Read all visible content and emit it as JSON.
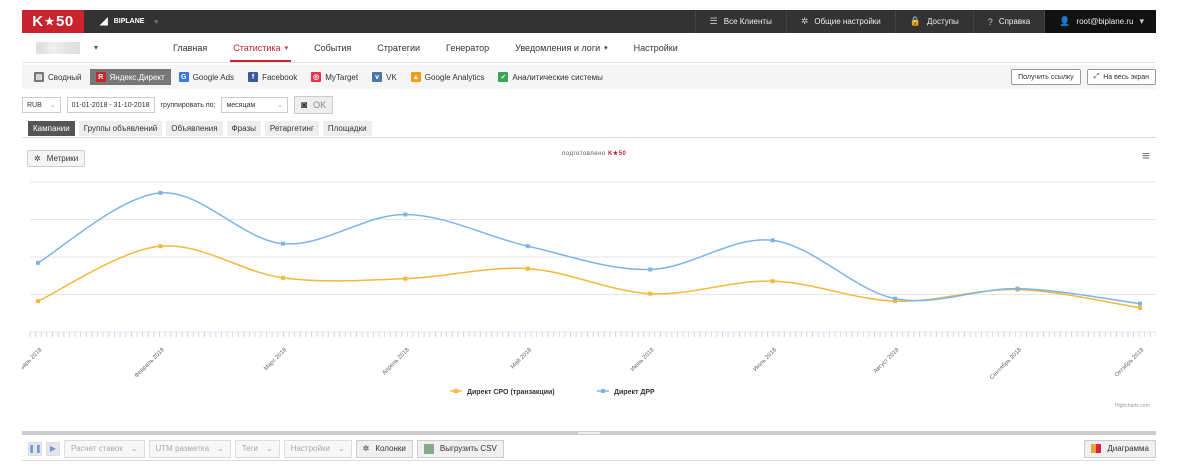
{
  "topbar": {
    "logo_left": "K",
    "logo_star": "★",
    "logo_right": "50",
    "brand_icon": "chart-icon",
    "brand_name": "BIPLANE",
    "items": [
      {
        "icon": "list-icon",
        "glyph": "☰",
        "label": "Все Клиенты"
      },
      {
        "icon": "gear-icon",
        "glyph": "✲",
        "label": "Общие настройки"
      },
      {
        "icon": "lock-icon",
        "glyph": "🔒",
        "label": "Доступы"
      },
      {
        "icon": "help-icon",
        "glyph": "?",
        "label": "Справка"
      }
    ],
    "user": {
      "icon": "user-icon",
      "label": "root@biplane.ru"
    }
  },
  "nav": {
    "links": [
      {
        "label": "Главная",
        "active": false,
        "caret": false
      },
      {
        "label": "Статистика",
        "active": true,
        "caret": true
      },
      {
        "label": "События",
        "active": false,
        "caret": false
      },
      {
        "label": "Стратегии",
        "active": false,
        "caret": false
      },
      {
        "label": "Генератор",
        "active": false,
        "caret": false
      },
      {
        "label": "Уведомления и логи",
        "active": false,
        "caret": true
      },
      {
        "label": "Настройки",
        "active": false,
        "caret": false
      }
    ]
  },
  "sources": {
    "items": [
      {
        "label": "Сводный",
        "icon": "summary-icon",
        "color": "#777777",
        "glyph": "▤",
        "active": false
      },
      {
        "label": "Яндекс.Директ",
        "icon": "yandex-icon",
        "color": "#c9232d",
        "glyph": "Я",
        "active": true
      },
      {
        "label": "Google Ads",
        "icon": "google-ads-icon",
        "color": "#3b78e7",
        "glyph": "G",
        "active": false
      },
      {
        "label": "Facebook",
        "icon": "facebook-icon",
        "color": "#3b5998",
        "glyph": "f",
        "active": false
      },
      {
        "label": "MyTarget",
        "icon": "mytarget-icon",
        "color": "#e8354a",
        "glyph": "◎",
        "active": false
      },
      {
        "label": "VK",
        "icon": "vk-icon",
        "color": "#4a76a8",
        "glyph": "v",
        "active": false
      },
      {
        "label": "Google Analytics",
        "icon": "google-analytics-icon",
        "color": "#f29d1a",
        "glyph": "▲",
        "active": false
      },
      {
        "label": "Аналитические системы",
        "icon": "analytics-systems-icon",
        "color": "#3aa655",
        "glyph": "✓",
        "active": false
      }
    ],
    "get_link": "Получить ссылку",
    "fullscreen": "На весь экран"
  },
  "filters": {
    "currency": "RUB",
    "date_range": "01-01-2018 - 31-10-2018",
    "group_by_label": "группировать по:",
    "group_by_value": "месяцам",
    "ok_label": "OK"
  },
  "report_tabs": [
    {
      "label": "Кампании",
      "active": true
    },
    {
      "label": "Группы объявлений",
      "active": false
    },
    {
      "label": "Объявления",
      "active": false
    },
    {
      "label": "Фразы",
      "active": false
    },
    {
      "label": "Ретаргетинг",
      "active": false
    },
    {
      "label": "Площадки",
      "active": false
    }
  ],
  "chart_panel": {
    "metrics_label": "Метрики",
    "prepared_text": "подготовлено",
    "prepared_brand_left": "K",
    "prepared_brand_star": "★",
    "prepared_brand_right": "50",
    "credits": "Highcharts.com"
  },
  "chart_data": {
    "type": "line",
    "categories": [
      "Январь 2018",
      "Февраль 2018",
      "Март 2018",
      "Апрель 2018",
      "Май 2018",
      "Июнь 2018",
      "Июль 2018",
      "Август 2018",
      "Сентябрь 2018",
      "Октябрь 2018"
    ],
    "series": [
      {
        "name": "Директ CPO (транзакции)",
        "color": "#f7b73b",
        "values": [
          37,
          103,
          65,
          64,
          76,
          46,
          61,
          37,
          51,
          29
        ]
      },
      {
        "name": "Директ ДРР",
        "color": "#7cb5ec",
        "values": [
          83,
          167,
          106,
          141,
          103,
          75,
          110,
          40,
          52,
          34
        ]
      }
    ],
    "ylim": [
      0,
      180
    ],
    "grid": true,
    "yaxis_labels_visible": false,
    "legend_position": "bottom-center"
  },
  "bottom_toolbar": {
    "pause_icon": "pause-icon",
    "play_icon": "play-icon",
    "selects": [
      "Расчет ставок",
      "UTM разметка",
      "Теги",
      "Настройки"
    ],
    "columns_label": "Колонки",
    "export_label": "Выгрузить CSV",
    "diagram_label": "Диаграмма"
  }
}
